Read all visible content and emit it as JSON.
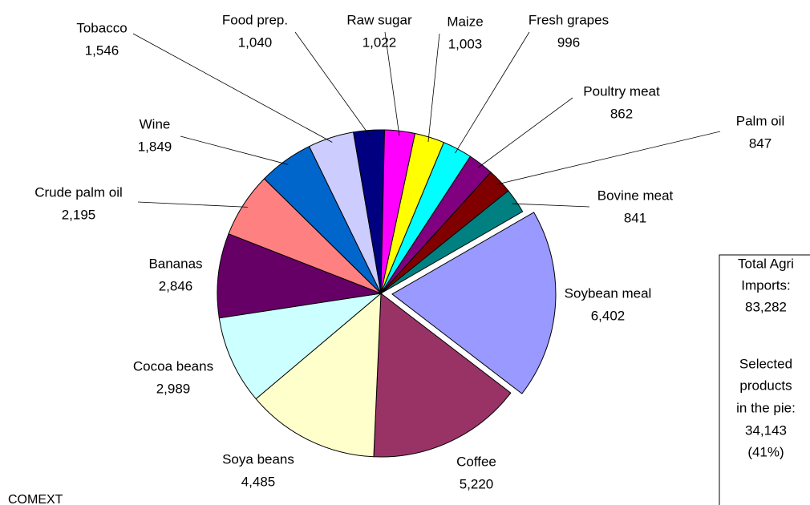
{
  "chart_data": {
    "type": "pie",
    "categories": [
      "Soybean meal",
      "Coffee",
      "Soya beans",
      "Cocoa beans",
      "Bananas",
      "Crude palm oil",
      "Wine",
      "Tobacco",
      "Food prep.",
      "Raw sugar",
      "Maize",
      "Fresh grapes",
      "Poultry meat",
      "Palm oil",
      "Bovine meat"
    ],
    "values": [
      6402,
      5220,
      4485,
      2989,
      2846,
      2195,
      1849,
      1546,
      1040,
      1022,
      1003,
      996,
      862,
      847,
      841
    ],
    "value_labels": [
      "6,402",
      "5,220",
      "4,485",
      "2,989",
      "2,846",
      "2,195",
      "1,849",
      "1,546",
      "1,040",
      "1,022",
      "1,003",
      "996",
      "862",
      "847",
      "841"
    ],
    "colors": [
      "#9999ff",
      "#993366",
      "#ffffcc",
      "#ccffff",
      "#660066",
      "#ff8080",
      "#0066cc",
      "#ccccff",
      "#000080",
      "#ff00ff",
      "#ffff00",
      "#00ffff",
      "#800080",
      "#800000",
      "#008080"
    ],
    "exploded": [
      "Soybean meal"
    ],
    "annotation_lines": [
      "Total Agri",
      "Imports:",
      "83,282",
      "Selected",
      "products",
      "in the pie:",
      "34,143",
      "(41%)"
    ],
    "source": "COMEXT"
  }
}
